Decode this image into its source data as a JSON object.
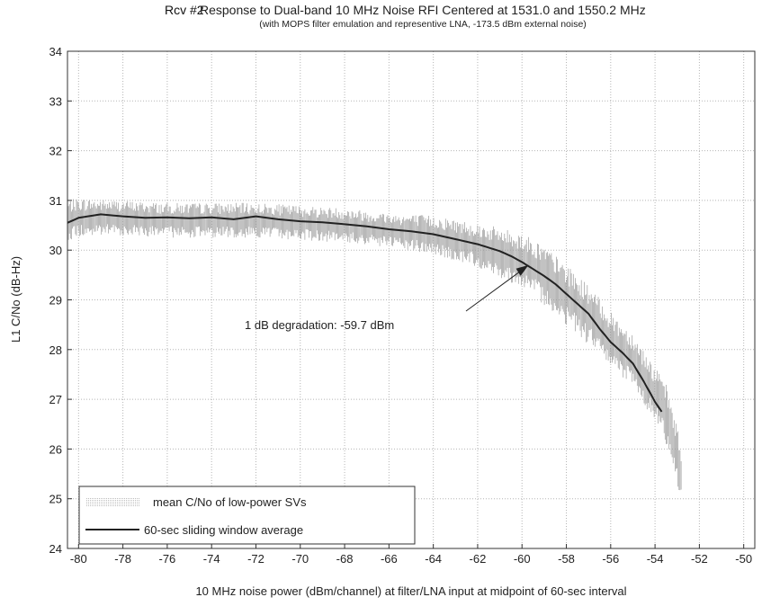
{
  "title_prefix": "Rcv #2",
  "chart_data": {
    "type": "line",
    "title": "Response to Dual-band 10 MHz Noise RFI Centered at 1531.0 and 1550.2 MHz",
    "subtitle": "(with MOPS filter emulation and representive LNA, -173.5 dBm external noise)",
    "xlabel": "10 MHz noise power (dBm/channel) at filter/LNA input at midpoint of 60-sec interval",
    "ylabel": "L1 C/No (dB-Hz)",
    "xlim": [
      -80.5,
      -49.5
    ],
    "ylim": [
      24,
      34
    ],
    "xticks": [
      -80,
      -78,
      -76,
      -74,
      -72,
      -70,
      -68,
      -66,
      -64,
      -62,
      -60,
      -58,
      -56,
      -54,
      -52,
      -50
    ],
    "yticks": [
      24,
      25,
      26,
      27,
      28,
      29,
      30,
      31,
      32,
      33,
      34
    ],
    "grid": true,
    "legend": {
      "position": "bottom-left",
      "entries": [
        "mean C/No of low-power SVs",
        "60-sec sliding window average"
      ]
    },
    "annotation": {
      "text": "1 dB degradation: -59.7 dBm",
      "point": [
        -59.7,
        29.7
      ]
    },
    "series": [
      {
        "name": "mean C/No of low-power SVs",
        "style": "noisy",
        "color": "#9a9a9a",
        "x": [
          -80.5,
          -80,
          -78,
          -76,
          -74,
          -72,
          -70,
          -68,
          -66,
          -64,
          -62,
          -60,
          -59,
          -58,
          -57,
          -56,
          -55,
          -54,
          -53.5,
          -53,
          -52.8
        ],
        "y": [
          30.6,
          30.65,
          30.65,
          30.6,
          30.6,
          30.6,
          30.55,
          30.5,
          30.4,
          30.3,
          30.1,
          29.8,
          29.5,
          29.1,
          28.7,
          28.2,
          27.8,
          27.1,
          26.7,
          25.9,
          25.4
        ],
        "spread": [
          0.4,
          0.4,
          0.35,
          0.35,
          0.35,
          0.35,
          0.35,
          0.35,
          0.35,
          0.4,
          0.45,
          0.55,
          0.6,
          0.6,
          0.6,
          0.55,
          0.55,
          0.55,
          0.6,
          0.6,
          0.5
        ]
      },
      {
        "name": "60-sec sliding window average",
        "style": "solid",
        "color": "#222222",
        "x": [
          -80.5,
          -80,
          -79,
          -78,
          -77,
          -76,
          -75,
          -74,
          -73,
          -72,
          -71,
          -70,
          -69,
          -68,
          -67,
          -66,
          -65,
          -64,
          -63,
          -62,
          -61,
          -60.5,
          -60,
          -59.5,
          -59,
          -58.5,
          -58,
          -57.5,
          -57,
          -56.5,
          -56,
          -55.5,
          -55,
          -54.5,
          -54,
          -53.7
        ],
        "y": [
          30.55,
          30.65,
          30.72,
          30.68,
          30.65,
          30.66,
          30.64,
          30.66,
          30.62,
          30.68,
          30.62,
          30.58,
          30.56,
          30.52,
          30.48,
          30.42,
          30.38,
          30.32,
          30.22,
          30.12,
          29.98,
          29.88,
          29.76,
          29.62,
          29.48,
          29.32,
          29.12,
          28.92,
          28.72,
          28.42,
          28.15,
          27.95,
          27.72,
          27.35,
          26.95,
          26.75
        ]
      }
    ]
  }
}
